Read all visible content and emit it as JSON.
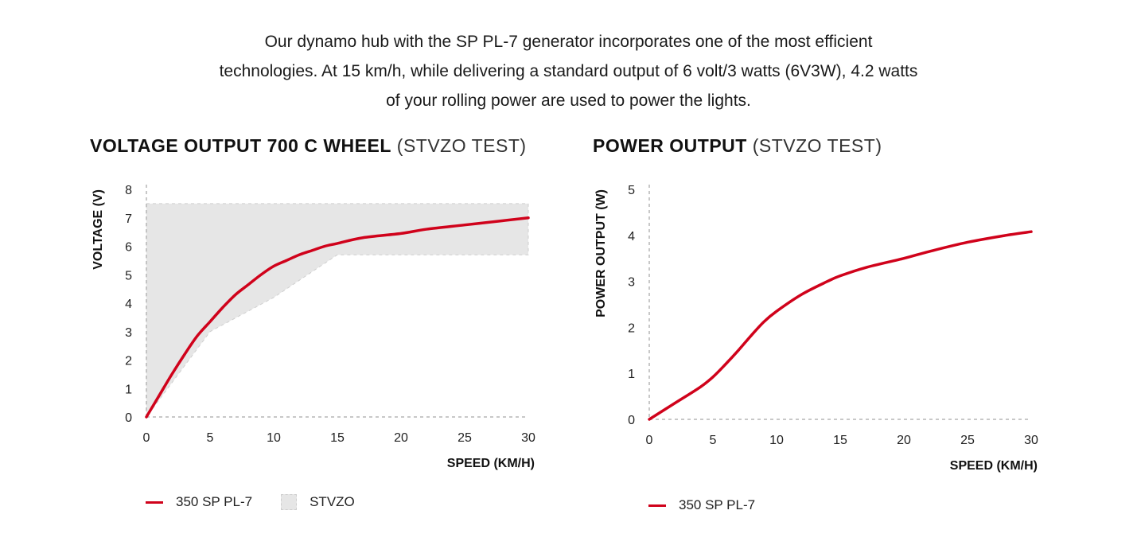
{
  "intro": {
    "lines": [
      "Our dynamo hub with the SP PL-7 generator incorporates one of the most efficient",
      "technologies. At 15 km/h, while delivering a standard output of 6 volt/3 watts (6V3W), 4.2 watts",
      "of your rolling power are used to power the lights."
    ]
  },
  "colors": {
    "series": "#d0021b",
    "band": "#e6e6e6",
    "axis": "#b5b5b5"
  },
  "chart_data": [
    {
      "type": "line",
      "title": "VOLTAGE OUTPUT 700 C WHEEL",
      "subtitle": "(STVZO TEST)",
      "xlabel": "SPEED (KM/H)",
      "ylabel": "VOLTAGE (V)",
      "xlim": [
        0,
        30
      ],
      "ylim": [
        0,
        8
      ],
      "xticks": [
        0,
        5,
        10,
        15,
        20,
        25,
        30
      ],
      "yticks": [
        0,
        1,
        2,
        3,
        4,
        5,
        6,
        7,
        8
      ],
      "series": [
        {
          "name": "350 SP PL-7",
          "x": [
            0,
            1,
            2,
            3,
            4,
            5,
            6,
            7,
            8,
            9,
            10,
            11,
            12,
            13,
            14,
            15,
            17,
            20,
            22,
            25,
            28,
            30
          ],
          "y": [
            0,
            0.75,
            1.5,
            2.2,
            2.85,
            3.35,
            3.85,
            4.3,
            4.65,
            5.0,
            5.3,
            5.5,
            5.7,
            5.85,
            6.0,
            6.1,
            6.3,
            6.45,
            6.6,
            6.75,
            6.9,
            7.0
          ]
        }
      ],
      "band": {
        "name": "STVZO",
        "upper": {
          "x": [
            0,
            30
          ],
          "y": [
            7.5,
            7.5
          ]
        },
        "lower": {
          "x": [
            0,
            5,
            10,
            15,
            30
          ],
          "y": [
            0,
            3.0,
            4.2,
            5.7,
            5.7
          ]
        }
      },
      "legend": [
        {
          "label": "350 SP PL-7",
          "kind": "line"
        },
        {
          "label": "STVZO",
          "kind": "area"
        }
      ],
      "legend_placement": "bottom-left",
      "grid": false
    },
    {
      "type": "line",
      "title": "POWER OUTPUT",
      "subtitle": "(STVZO TEST)",
      "xlabel": "SPEED (KM/H)",
      "ylabel": "POWER OUTPUT (W)",
      "xlim": [
        0,
        30
      ],
      "ylim": [
        0,
        5
      ],
      "xticks": [
        0,
        5,
        10,
        15,
        20,
        25,
        30
      ],
      "yticks": [
        0,
        1,
        2,
        3,
        4,
        5
      ],
      "series": [
        {
          "name": "350 SP PL-7",
          "x": [
            0,
            2,
            4,
            5,
            6,
            7,
            8,
            9,
            10,
            12,
            14,
            15,
            17,
            20,
            22,
            25,
            28,
            30
          ],
          "y": [
            0,
            0.35,
            0.7,
            0.92,
            1.2,
            1.5,
            1.82,
            2.12,
            2.35,
            2.72,
            3.0,
            3.12,
            3.3,
            3.5,
            3.65,
            3.85,
            4.0,
            4.08
          ]
        }
      ],
      "legend": [
        {
          "label": "350 SP PL-7",
          "kind": "line"
        }
      ],
      "legend_placement": "bottom-left",
      "grid": false
    }
  ]
}
